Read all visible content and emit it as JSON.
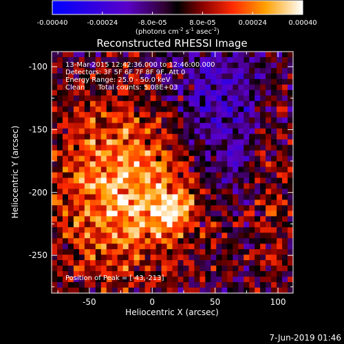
{
  "chart_data": {
    "type": "heatmap",
    "title": "Reconstructed RHESSI Image",
    "xlabel": "Heliocentric X (arcsec)",
    "ylabel": "Heliocentric Y (arcsec)",
    "xlim": [
      -80,
      112
    ],
    "ylim": [
      -280,
      -88
    ],
    "xticks": [
      "-50",
      "0",
      "50",
      "100"
    ],
    "yticks": [
      "-100",
      "-150",
      "-200",
      "-250"
    ],
    "colorbar": {
      "min": -0.0004,
      "max": 0.0004,
      "ticks": [
        "-0.00040",
        "-0.00024",
        "-8.0e-05",
        "8.0e-05",
        "0.00024",
        "0.00040"
      ],
      "units_prefix": "(photons cm",
      "units_sup1": "-2",
      "units_mid1": " s",
      "units_sup2": "-1",
      "units_mid2": " asec",
      "units_sup3": "-2",
      "units_suffix": ")"
    },
    "info_lines": [
      "13-Mar-2015 12:42:36.000 to 12:46:00.000",
      "Detectors: 3F 5F 6F 7F 8F 9F, Att 0",
      "Energy Range: 25.0 - 50.0 keV",
      "Clean      Total counts: 5.08E+03"
    ],
    "peak_label": "Position of Peak = [-43,-213]",
    "peak_position": [
      -43,
      -213
    ],
    "footer_date": "7-Jun-2019 01:46"
  }
}
